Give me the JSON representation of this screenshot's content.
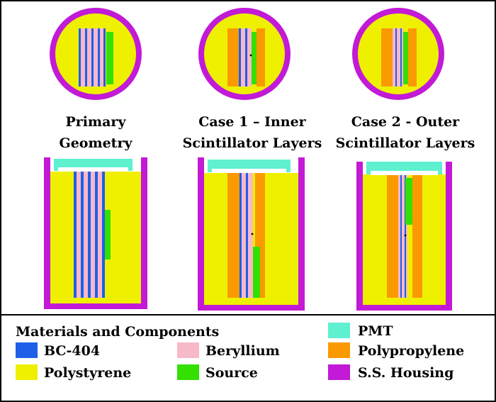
{
  "colors": {
    "bc404": "#1f5fe8",
    "beryllium": "#f7b8c8",
    "polypropylene": "#fb9a00",
    "polystyrene": "#eef000",
    "source": "#33e000",
    "pmt": "#5ff0d0",
    "housing": "#c21ad6",
    "background": "#ffffff"
  },
  "captions": {
    "primary": [
      "Primary",
      "Geometry"
    ],
    "case1": [
      "Case 1 – Inner",
      "Scintillator Layers"
    ],
    "case2": [
      "Case 2 - Outer",
      "Scintillator Layers"
    ]
  },
  "legend": {
    "title": "Materials and Components",
    "items": [
      {
        "key": "bc404",
        "label": "BC-404",
        "color": "#1f5fe8"
      },
      {
        "key": "beryllium",
        "label": "Beryllium",
        "color": "#f7b8c8"
      },
      {
        "key": "polypropylene",
        "label": "Polypropylene",
        "color": "#fb9a00"
      },
      {
        "key": "polystyrene",
        "label": "Polystyrene",
        "color": "#eef000"
      },
      {
        "key": "source",
        "label": "Source",
        "color": "#33e000"
      },
      {
        "key": "pmt",
        "label": "PMT",
        "color": "#5ff0d0"
      },
      {
        "key": "housing",
        "label": "S.S. Housing",
        "color": "#c21ad6"
      }
    ]
  }
}
